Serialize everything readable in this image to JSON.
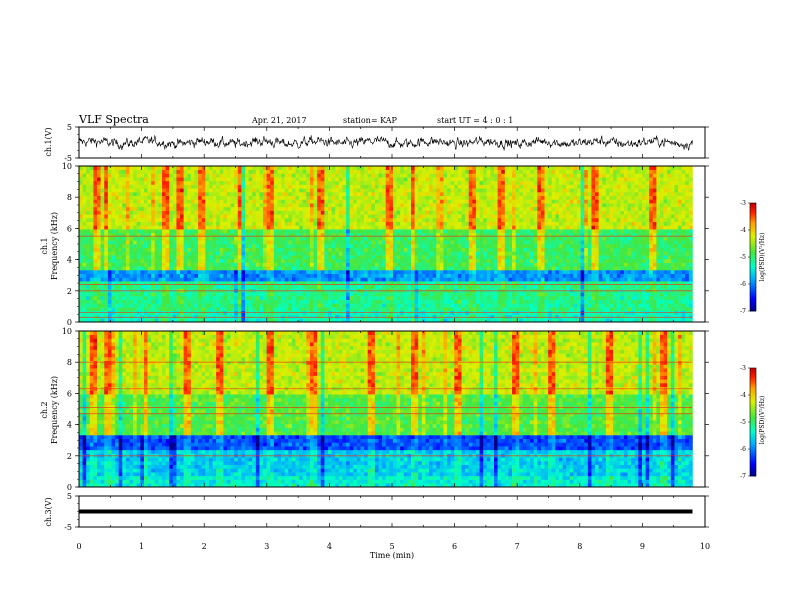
{
  "header": {
    "title": "VLF Spectra",
    "date": "Apr. 21, 2017",
    "station": "station= KAP",
    "start_ut": "start  UT =  4 : 0  : 1"
  },
  "chart_data": [
    {
      "type": "line",
      "id": "ch1-waveform",
      "ylabel": "ch.1(V)",
      "yticks": [
        "5",
        "-5"
      ],
      "ylim": [
        -5,
        5
      ],
      "xlim": [
        0,
        10
      ],
      "x_extent_min": 9.8,
      "description_values": "noisy waveform around 0 V, amplitude roughly ±2.5 V, extending 0–9.8 min"
    },
    {
      "type": "heatmap",
      "id": "ch1-spectrogram",
      "ylabel": "ch.1\nFrequency (kHz)",
      "ylabel_lines": [
        "ch.1",
        "Frequency (kHz)"
      ],
      "yticks": [
        "0",
        "2",
        "4",
        "6",
        "8",
        "10"
      ],
      "ylim": [
        0,
        10
      ],
      "xlim": [
        0,
        10
      ],
      "data_extent_min": 9.8,
      "colorbar": {
        "label": "log(PSD)(V²/Hz)",
        "ticks": [
          "-3",
          "-4",
          "-5",
          "-6",
          "-7"
        ],
        "range": [
          -7,
          -3
        ]
      },
      "band_levels": [
        {
          "from_khz": 0,
          "to_khz": 0.6,
          "level": -5.3
        },
        {
          "from_khz": 0.6,
          "to_khz": 2.6,
          "level": -5.1
        },
        {
          "from_khz": 2.6,
          "to_khz": 3.3,
          "level": -5.9
        },
        {
          "from_khz": 3.3,
          "to_khz": 6.0,
          "level": -4.9
        },
        {
          "from_khz": 6.0,
          "to_khz": 10,
          "level": -4.3
        }
      ],
      "horizontal_lines_khz": [
        0.3,
        0.6,
        2.0,
        2.4,
        5.5
      ],
      "bright_times_min": [
        0.25,
        0.4,
        1.3,
        1.55,
        1.9,
        2.5,
        3.0,
        3.8,
        4.9,
        5.3,
        6.2,
        6.7,
        7.3,
        8.2,
        9.1
      ]
    },
    {
      "type": "heatmap",
      "id": "ch2-spectrogram",
      "ylabel": "ch.2\nFrequency (kHz)",
      "ylabel_lines": [
        "ch.2",
        "Frequency (kHz)"
      ],
      "yticks": [
        "0",
        "2",
        "4",
        "6",
        "8",
        "10"
      ],
      "ylim": [
        0,
        10
      ],
      "xlim": [
        0,
        10
      ],
      "data_extent_min": 9.8,
      "colorbar": {
        "label": "log(PSD)(V²/Hz)",
        "ticks": [
          "-3",
          "-4",
          "-5",
          "-6",
          "-7"
        ],
        "range": [
          -7,
          -3
        ]
      },
      "band_levels": [
        {
          "from_khz": 0,
          "to_khz": 0.6,
          "level": -5.4
        },
        {
          "from_khz": 0.6,
          "to_khz": 2.5,
          "level": -5.6
        },
        {
          "from_khz": 2.5,
          "to_khz": 3.3,
          "level": -6.2
        },
        {
          "from_khz": 3.3,
          "to_khz": 6.0,
          "level": -4.8
        },
        {
          "from_khz": 6.0,
          "to_khz": 10,
          "level": -4.3
        }
      ],
      "horizontal_lines_khz": [
        2.0,
        4.7,
        5.1,
        6.3,
        8.0
      ],
      "bright_times_min": [
        0.2,
        0.4,
        1.0,
        1.7,
        2.2,
        3.0,
        3.7,
        4.6,
        5.3,
        6.0,
        6.9,
        7.5,
        8.4,
        9.3
      ]
    },
    {
      "type": "line",
      "id": "ch3-waveform",
      "ylabel": "ch.3(V)",
      "yticks": [
        "5",
        "-5"
      ],
      "ylim": [
        -5,
        5
      ],
      "xlim": [
        0,
        10
      ],
      "constant_value_v": 0,
      "x_extent_min": 9.8
    }
  ],
  "x_axis": {
    "label": "Time (min)",
    "ticks": [
      "0",
      "1",
      "2",
      "3",
      "4",
      "5",
      "6",
      "7",
      "8",
      "9",
      "10"
    ],
    "range": [
      0,
      10
    ]
  }
}
